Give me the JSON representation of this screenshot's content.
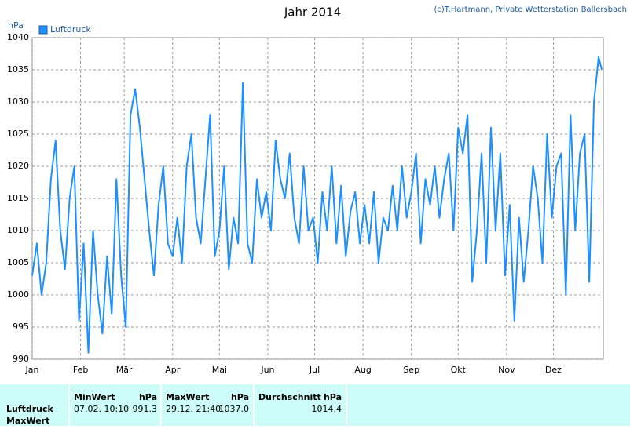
{
  "chart_data": {
    "type": "line",
    "title": "Jahr 2014",
    "credit": "(c)T.Hartmann, Private Wetterstation Ballersbach",
    "ylabel": "hPa",
    "xlim": [
      0,
      366
    ],
    "ylim": [
      990,
      1040
    ],
    "xticks": [
      {
        "value": 0,
        "label": "Jan"
      },
      {
        "value": 31,
        "label": "Feb"
      },
      {
        "value": 59,
        "label": "Mär"
      },
      {
        "value": 90,
        "label": "Apr"
      },
      {
        "value": 120,
        "label": "Mai"
      },
      {
        "value": 151,
        "label": "Jun"
      },
      {
        "value": 181,
        "label": "Jul"
      },
      {
        "value": 212,
        "label": "Aug"
      },
      {
        "value": 243,
        "label": "Sep"
      },
      {
        "value": 273,
        "label": "Okt"
      },
      {
        "value": 304,
        "label": "Nov"
      },
      {
        "value": 334,
        "label": "Dez"
      }
    ],
    "yticks": [
      990,
      995,
      1000,
      1005,
      1010,
      1015,
      1020,
      1025,
      1030,
      1035,
      1040
    ],
    "grid": true,
    "legend": "top-left",
    "x": [
      0,
      3,
      6,
      9,
      12,
      15,
      18,
      21,
      24,
      27,
      30,
      33,
      36,
      39,
      42,
      45,
      48,
      51,
      54,
      57,
      60,
      63,
      66,
      69,
      72,
      75,
      78,
      81,
      84,
      87,
      90,
      93,
      96,
      99,
      102,
      105,
      108,
      111,
      114,
      117,
      120,
      123,
      126,
      129,
      132,
      135,
      138,
      141,
      144,
      147,
      150,
      153,
      156,
      159,
      162,
      165,
      168,
      171,
      174,
      177,
      180,
      183,
      186,
      189,
      192,
      195,
      198,
      201,
      204,
      207,
      210,
      213,
      216,
      219,
      222,
      225,
      228,
      231,
      234,
      237,
      240,
      243,
      246,
      249,
      252,
      255,
      258,
      261,
      264,
      267,
      270,
      273,
      276,
      279,
      282,
      285,
      288,
      291,
      294,
      297,
      300,
      303,
      306,
      309,
      312,
      315,
      318,
      321,
      324,
      327,
      330,
      333,
      336,
      339,
      342,
      345,
      348,
      351,
      354,
      357,
      360,
      363,
      365
    ],
    "series": [
      {
        "name": "Luftdruck",
        "color": "#1e8fff",
        "values": [
          1003,
          1008,
          1000,
          1005,
          1018,
          1024,
          1010,
          1004,
          1015,
          1020,
          996,
          1008,
          991,
          1010,
          1000,
          994,
          1006,
          997,
          1018,
          1003,
          995,
          1028,
          1032,
          1026,
          1018,
          1010,
          1003,
          1014,
          1020,
          1008,
          1006,
          1012,
          1005,
          1020,
          1025,
          1012,
          1008,
          1018,
          1028,
          1006,
          1010,
          1020,
          1004,
          1012,
          1008,
          1033,
          1008,
          1005,
          1018,
          1012,
          1016,
          1010,
          1024,
          1018,
          1015,
          1022,
          1012,
          1008,
          1020,
          1010,
          1012,
          1005,
          1016,
          1010,
          1020,
          1008,
          1017,
          1006,
          1013,
          1016,
          1008,
          1014,
          1008,
          1016,
          1005,
          1012,
          1010,
          1017,
          1010,
          1020,
          1012,
          1016,
          1022,
          1008,
          1018,
          1014,
          1020,
          1012,
          1018,
          1022,
          1010,
          1026,
          1022,
          1028,
          1002,
          1010,
          1022,
          1005,
          1026,
          1010,
          1022,
          1003,
          1014,
          996,
          1012,
          1002,
          1010,
          1020,
          1015,
          1005,
          1025,
          1012,
          1020,
          1022,
          1000,
          1028,
          1010,
          1022,
          1025,
          1002,
          1030,
          1037,
          1035
        ]
      }
    ]
  },
  "table": {
    "columns": [
      {
        "name": "MinWert",
        "unit": "hPa"
      },
      {
        "name": "MaxWert",
        "unit": "hPa"
      },
      {
        "name": "Durchschnitt",
        "unit": "hPa"
      }
    ],
    "rows": [
      {
        "label": "Luftdruck",
        "cells": [
          [
            "07.02. 10:10",
            "991.3"
          ],
          [
            "29.12. 21:40",
            "1037.0"
          ],
          [
            "",
            "1014.4"
          ]
        ]
      }
    ],
    "next_row": "MaxWert"
  }
}
